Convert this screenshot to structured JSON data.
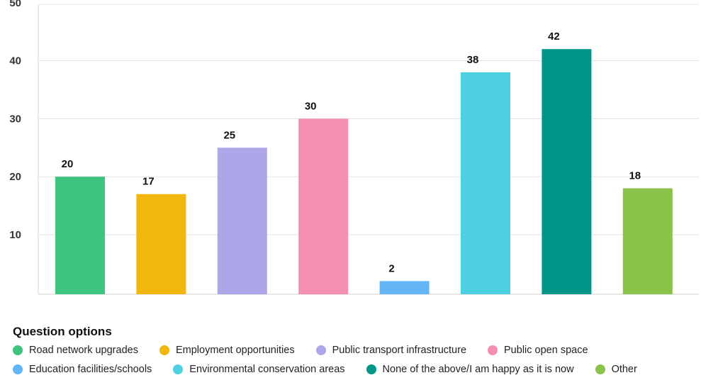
{
  "chart_data": {
    "type": "bar",
    "categories": [
      "Road network upgrades",
      "Employment opportunities",
      "Public transport infrastructure",
      "Public open space",
      "Education facilities/schools",
      "Environmental conservation areas",
      "None of the above/I am happy as it is now",
      "Other"
    ],
    "values": [
      20,
      17,
      25,
      30,
      2,
      38,
      42,
      18
    ],
    "colors": [
      "#3dc47e",
      "#f2b70e",
      "#ada6e8",
      "#f48fb1",
      "#64b5f6",
      "#4dd0e1",
      "#009688",
      "#8bc34a"
    ],
    "y_ticks": [
      10,
      20,
      30,
      40,
      50
    ],
    "ylim": [
      0,
      50
    ],
    "grid": true,
    "legend": {
      "title": "Question options",
      "placement": "bottom-left"
    }
  }
}
